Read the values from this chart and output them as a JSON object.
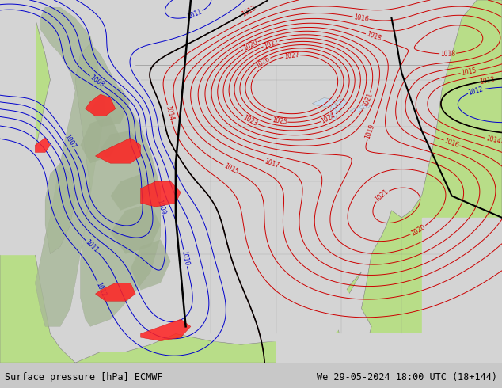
{
  "title_left": "Surface pressure [hPa] ECMWF",
  "title_right": "We 29-05-2024 18:00 UTC (18+144)",
  "land_color": "#b8dd88",
  "ocean_color": "#d4d4d4",
  "mountain_color": "#b0b8a0",
  "red_color": "#cc0000",
  "blue_color": "#0000cc",
  "black_color": "#000000",
  "label_fontsize": 5.5,
  "title_fontsize": 8.5,
  "figsize": [
    6.34,
    4.9
  ],
  "dpi": 100
}
